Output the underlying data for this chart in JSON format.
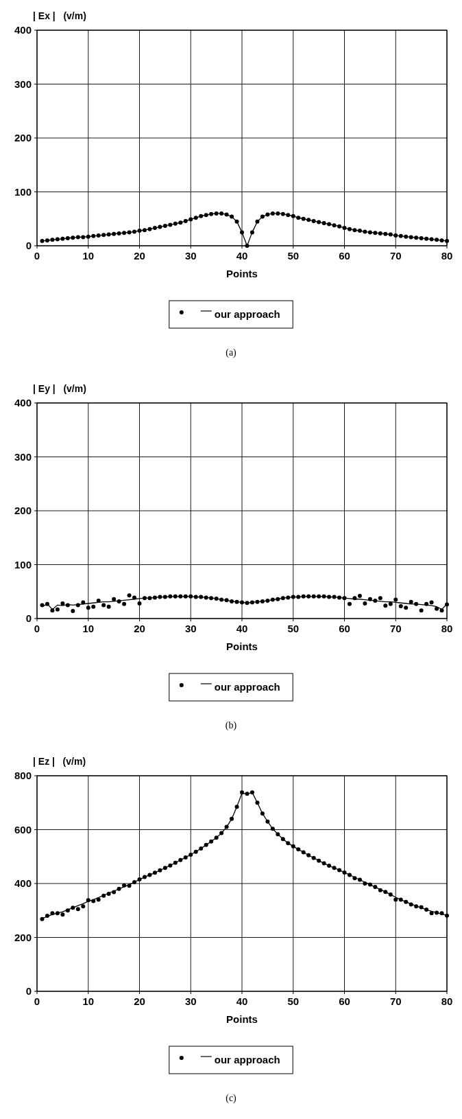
{
  "chart_data": [
    {
      "type": "line",
      "ylabel": "| Ex |   (v/m)",
      "xlabel": "Points",
      "x": [
        1,
        2,
        3,
        4,
        5,
        6,
        7,
        8,
        9,
        10,
        11,
        12,
        13,
        14,
        15,
        16,
        17,
        18,
        19,
        20,
        21,
        22,
        23,
        24,
        25,
        26,
        27,
        28,
        29,
        30,
        31,
        32,
        33,
        34,
        35,
        36,
        37,
        38,
        39,
        40,
        41,
        42,
        43,
        44,
        45,
        46,
        47,
        48,
        49,
        50,
        51,
        52,
        53,
        54,
        55,
        56,
        57,
        58,
        59,
        60,
        61,
        62,
        63,
        64,
        65,
        66,
        67,
        68,
        69,
        70,
        71,
        72,
        73,
        74,
        75,
        76,
        77,
        78,
        79,
        80
      ],
      "xlim": [
        0,
        80
      ],
      "xticks": [
        0,
        10,
        20,
        30,
        40,
        50,
        60,
        70,
        80
      ],
      "ylim": [
        0,
        400
      ],
      "yticks": [
        0,
        100,
        200,
        300,
        400
      ],
      "grid": true,
      "legend": "bottom",
      "annotations": [
        "(a)"
      ],
      "series": [
        {
          "type": "scatter",
          "marker": "circle",
          "color": "#000000",
          "values": [
            9,
            10,
            11,
            12,
            13,
            14,
            15,
            16,
            16,
            17,
            18,
            19,
            20,
            21,
            22,
            23,
            24,
            25,
            26,
            28,
            29,
            31,
            33,
            35,
            37,
            39,
            41,
            43,
            46,
            49,
            52,
            55,
            57,
            59,
            60,
            60,
            58,
            54,
            45,
            25,
            0,
            25,
            45,
            54,
            58,
            60,
            60,
            59,
            57,
            55,
            52,
            50,
            48,
            46,
            44,
            42,
            40,
            38,
            36,
            33,
            31,
            29,
            28,
            26,
            25,
            24,
            23,
            22,
            21,
            19,
            18,
            17,
            16,
            15,
            14,
            13,
            12,
            11,
            10,
            9
          ]
        },
        {
          "name": "our approach",
          "color": "#000000",
          "values": [
            9,
            10,
            11,
            12,
            13,
            14,
            15,
            16,
            16,
            17,
            18,
            19,
            20,
            21,
            22,
            23,
            24,
            25,
            26,
            28,
            29,
            31,
            33,
            35,
            37,
            39,
            41,
            43,
            46,
            49,
            52,
            55,
            57,
            59,
            60,
            60,
            58,
            54,
            45,
            25,
            0,
            25,
            45,
            54,
            58,
            60,
            60,
            59,
            57,
            55,
            52,
            50,
            48,
            46,
            44,
            42,
            40,
            38,
            36,
            33,
            31,
            29,
            28,
            26,
            25,
            24,
            23,
            22,
            21,
            19,
            18,
            17,
            16,
            15,
            14,
            13,
            12,
            11,
            10,
            9
          ]
        }
      ]
    },
    {
      "type": "line",
      "ylabel": "| Ey |   (v/m)",
      "xlabel": "Points",
      "x": [
        1,
        2,
        3,
        4,
        5,
        6,
        7,
        8,
        9,
        10,
        11,
        12,
        13,
        14,
        15,
        16,
        17,
        18,
        19,
        20,
        21,
        22,
        23,
        24,
        25,
        26,
        27,
        28,
        29,
        30,
        31,
        32,
        33,
        34,
        35,
        36,
        37,
        38,
        39,
        40,
        41,
        42,
        43,
        44,
        45,
        46,
        47,
        48,
        49,
        50,
        51,
        52,
        53,
        54,
        55,
        56,
        57,
        58,
        59,
        60,
        61,
        62,
        63,
        64,
        65,
        66,
        67,
        68,
        69,
        70,
        71,
        72,
        73,
        74,
        75,
        76,
        77,
        78,
        79,
        80
      ],
      "xlim": [
        0,
        80
      ],
      "xticks": [
        0,
        10,
        20,
        30,
        40,
        50,
        60,
        70,
        80
      ],
      "ylim": [
        0,
        400
      ],
      "yticks": [
        0,
        100,
        200,
        300,
        400
      ],
      "grid": true,
      "legend": "bottom",
      "annotations": [
        "(b)"
      ],
      "series": [
        {
          "type": "scatter",
          "marker": "circle",
          "color": "#000000",
          "values": [
            25,
            27,
            15,
            17,
            28,
            25,
            14,
            25,
            30,
            20,
            22,
            33,
            25,
            22,
            36,
            32,
            27,
            43,
            39,
            28,
            38,
            38,
            39,
            40,
            40,
            41,
            41,
            41,
            41,
            41,
            40,
            40,
            39,
            38,
            37,
            35,
            34,
            32,
            31,
            30,
            29,
            30,
            31,
            32,
            33,
            35,
            36,
            38,
            39,
            40,
            40,
            41,
            41,
            41,
            41,
            41,
            40,
            40,
            39,
            38,
            27,
            38,
            42,
            28,
            36,
            33,
            38,
            24,
            27,
            35,
            23,
            20,
            31,
            27,
            15,
            27,
            30,
            18,
            15,
            26
          ]
        },
        {
          "name": "our approach",
          "color": "#000000",
          "values": [
            22,
            27,
            17,
            25,
            24,
            26,
            25,
            26,
            27,
            28,
            29,
            30,
            31,
            31,
            32,
            33,
            34,
            35,
            36,
            37,
            38,
            38,
            39,
            40,
            40,
            41,
            41,
            41,
            41,
            41,
            40,
            40,
            39,
            38,
            37,
            35,
            34,
            32,
            31,
            30,
            29,
            30,
            31,
            32,
            33,
            35,
            36,
            38,
            39,
            40,
            40,
            41,
            41,
            41,
            41,
            41,
            40,
            40,
            39,
            38,
            37,
            36,
            36,
            35,
            34,
            33,
            32,
            31,
            31,
            30,
            29,
            28,
            27,
            27,
            26,
            25,
            24,
            22,
            17,
            27
          ]
        }
      ]
    },
    {
      "type": "line",
      "ylabel": "| Ez |   (v/m)",
      "xlabel": "Points",
      "x": [
        1,
        2,
        3,
        4,
        5,
        6,
        7,
        8,
        9,
        10,
        11,
        12,
        13,
        14,
        15,
        16,
        17,
        18,
        19,
        20,
        21,
        22,
        23,
        24,
        25,
        26,
        27,
        28,
        29,
        30,
        31,
        32,
        33,
        34,
        35,
        36,
        37,
        38,
        39,
        40,
        41,
        42,
        43,
        44,
        45,
        46,
        47,
        48,
        49,
        50,
        51,
        52,
        53,
        54,
        55,
        56,
        57,
        58,
        59,
        60,
        61,
        62,
        63,
        64,
        65,
        66,
        67,
        68,
        69,
        70,
        71,
        72,
        73,
        74,
        75,
        76,
        77,
        78,
        79,
        80
      ],
      "xlim": [
        0,
        80
      ],
      "xticks": [
        0,
        10,
        20,
        30,
        40,
        50,
        60,
        70,
        80
      ],
      "ylim": [
        0,
        800
      ],
      "yticks": [
        0,
        200,
        400,
        600,
        800
      ],
      "grid": true,
      "legend": "bottom",
      "annotations": [
        "(c)"
      ],
      "series": [
        {
          "type": "scatter",
          "marker": "circle",
          "color": "#000000",
          "values": [
            268,
            280,
            290,
            290,
            285,
            300,
            310,
            305,
            315,
            338,
            335,
            340,
            355,
            362,
            368,
            380,
            393,
            392,
            405,
            415,
            424,
            432,
            440,
            449,
            458,
            467,
            477,
            487,
            497,
            507,
            518,
            530,
            543,
            556,
            570,
            587,
            610,
            640,
            685,
            738,
            733,
            738,
            700,
            660,
            630,
            603,
            583,
            565,
            550,
            538,
            527,
            516,
            505,
            495,
            485,
            475,
            466,
            458,
            450,
            441,
            432,
            420,
            414,
            400,
            396,
            387,
            375,
            369,
            359,
            340,
            340,
            332,
            322,
            315,
            312,
            303,
            290,
            292,
            290,
            281
          ]
        },
        {
          "name": "our approach",
          "color": "#000000",
          "values": [
            270,
            278,
            285,
            290,
            295,
            303,
            310,
            318,
            325,
            334,
            340,
            348,
            356,
            364,
            372,
            380,
            388,
            396,
            405,
            415,
            424,
            432,
            440,
            449,
            458,
            467,
            477,
            487,
            497,
            507,
            518,
            530,
            543,
            556,
            570,
            587,
            610,
            640,
            685,
            735,
            733,
            738,
            700,
            660,
            630,
            603,
            583,
            565,
            550,
            538,
            527,
            516,
            505,
            495,
            485,
            475,
            466,
            458,
            450,
            441,
            432,
            423,
            414,
            405,
            396,
            387,
            378,
            369,
            359,
            349,
            340,
            332,
            324,
            317,
            310,
            303,
            297,
            292,
            287,
            281
          ]
        }
      ]
    }
  ]
}
